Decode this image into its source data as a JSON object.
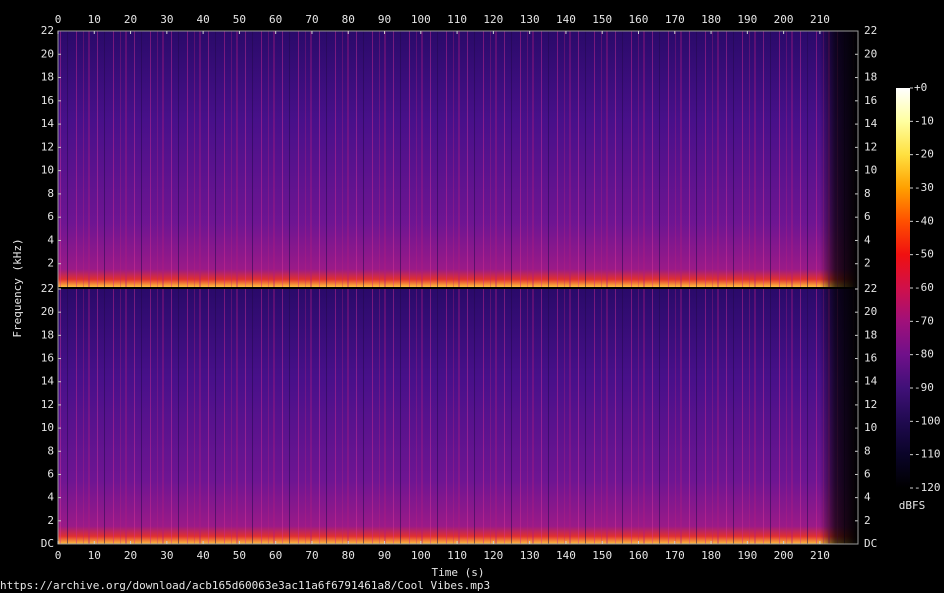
{
  "chart_data": {
    "type": "spectrogram",
    "x_label": "Time (s)",
    "y_label": "Frequency (kHz)",
    "xlim": [
      0,
      220.5
    ],
    "xticks": [
      0,
      10,
      20,
      30,
      40,
      50,
      60,
      70,
      80,
      90,
      100,
      110,
      120,
      130,
      140,
      150,
      160,
      170,
      180,
      190,
      200,
      210
    ],
    "channels": [
      {
        "ylim": [
          0,
          22
        ],
        "yticks": [
          2,
          4,
          6,
          8,
          10,
          12,
          14,
          16,
          18,
          20,
          22
        ]
      },
      {
        "ylim": [
          0,
          22
        ],
        "yticks": [
          {
            "value": 0,
            "label": "DC"
          },
          2,
          4,
          6,
          8,
          10,
          12,
          14,
          16,
          18,
          20,
          22
        ]
      }
    ],
    "colorbar": {
      "label": "dBFS",
      "lim": [
        -120,
        0
      ],
      "ticks": [
        {
          "value": 0,
          "label": "+0"
        },
        -10,
        -20,
        -30,
        -40,
        -50,
        -60,
        -70,
        -80,
        -90,
        -100,
        -110,
        -120
      ],
      "colors": [
        "#ffffff",
        "#ffffa0",
        "#ffe040",
        "#ffa000",
        "#ff5000",
        "#f01010",
        "#d0104a",
        "#a0107a",
        "#70108a",
        "#401078",
        "#200a50",
        "#0a0428",
        "#000000"
      ]
    }
  },
  "footer": "https://archive.org/download/acb165d60063e3ac11a6f6791461a8/Cool Vibes.mp3"
}
